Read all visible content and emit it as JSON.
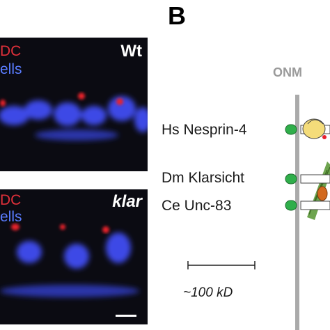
{
  "panel_letter": "B",
  "micrographs": [
    {
      "genotype": "Wt",
      "stain_red_partial": "DC",
      "stain_blue_partial": "ells"
    },
    {
      "genotype": "klar",
      "stain_red_partial": "DC",
      "stain_blue_partial": "ells"
    }
  ],
  "diagram": {
    "membrane_label": "ONM",
    "proteins": [
      {
        "label": "Hs Nesprin-4"
      },
      {
        "label": "Dm Klarsicht"
      },
      {
        "label": "Ce Unc-83"
      }
    ],
    "scale_label": "~100 kD"
  },
  "colors": {
    "micrograph_bg": "#0b0b12",
    "nuclei_blue": "#3c4ae6",
    "marker_red": "#e8202c",
    "membrane_grey": "#aaaaaa",
    "kash_green": "#2fae4a",
    "kinesin_yellow": "#f4dc7a",
    "dynein_orange": "#d2691e",
    "microtubule_green": "#5e9a3c"
  }
}
